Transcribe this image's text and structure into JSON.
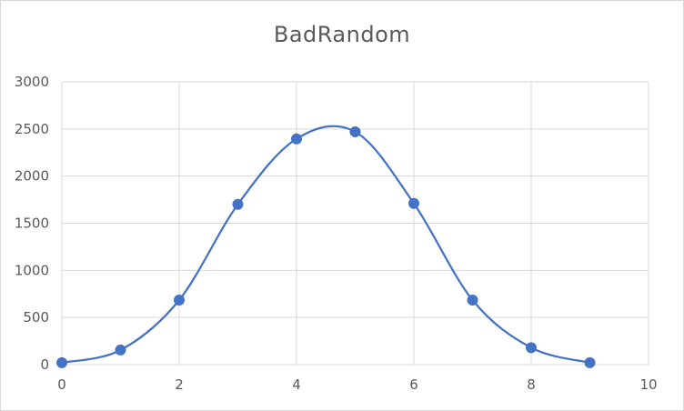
{
  "chart_data": {
    "type": "scatter",
    "title": "BadRandom",
    "xlabel": "",
    "ylabel": "",
    "xlim": [
      0,
      10
    ],
    "ylim": [
      0,
      3000
    ],
    "xticks": [
      0,
      2,
      4,
      6,
      8,
      10
    ],
    "yticks": [
      0,
      500,
      1000,
      1500,
      2000,
      2500,
      3000
    ],
    "grid": true,
    "smooth_line": true,
    "series": [
      {
        "color": "#4472c4",
        "x": [
          0,
          1,
          2,
          3,
          4,
          5,
          6,
          7,
          8,
          9
        ],
        "y": [
          20,
          155,
          685,
          1700,
          2395,
          2470,
          1710,
          685,
          180,
          20
        ]
      }
    ]
  }
}
